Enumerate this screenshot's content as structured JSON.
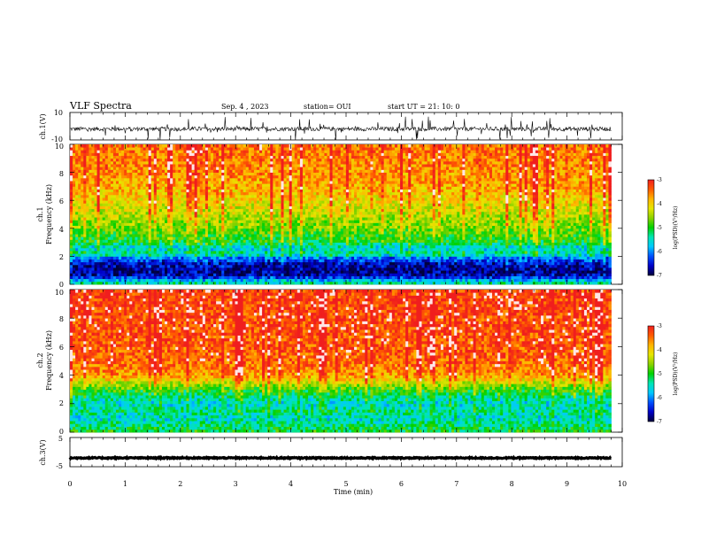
{
  "header": {
    "title": "VLF Spectra",
    "date": "Sep. 4 , 2023",
    "station": "station= OUI",
    "start_ut": "start UT =   21: 10: 0"
  },
  "colors": {
    "spectrum_scale": [
      "#00003c",
      "#0000c8",
      "#0050ff",
      "#00c8ff",
      "#00e6b4",
      "#00d200",
      "#8cd200",
      "#e6e600",
      "#ffb400",
      "#ff5a00",
      "#f01e1e",
      "#ffe6e6"
    ],
    "waveform": "#000000"
  },
  "chart_data": [
    {
      "type": "line",
      "panel": "ch1-waveform",
      "ylabel": "ch.1(V)",
      "yticklabels": [
        "10",
        "-10"
      ],
      "ylim": [
        -10,
        10
      ],
      "xlim": [
        0,
        10
      ],
      "data_extent_min": 9.8,
      "trace": {
        "baseline": -2,
        "noise_amplitude": 1.5,
        "spike_amplitude": 8
      }
    },
    {
      "type": "heatmap",
      "panel": "ch1-spectrogram",
      "ylabel_line1": "ch.1",
      "ylabel_line2": "Frequency  (kHz)",
      "yticklabels": [
        "0",
        "2",
        "4",
        "6",
        "8",
        "10"
      ],
      "ylim_khz": [
        0,
        10
      ],
      "xlim_min": [
        0,
        10
      ],
      "data_extent_min": 9.8,
      "profile_log_psd": [
        {
          "f": 0.0,
          "v": -5.2
        },
        {
          "f": 0.3,
          "v": -5.8
        },
        {
          "f": 0.6,
          "v": -6.6
        },
        {
          "f": 1.0,
          "v": -6.8
        },
        {
          "f": 1.5,
          "v": -6.6
        },
        {
          "f": 1.9,
          "v": -6.1
        },
        {
          "f": 2.2,
          "v": -5.3
        },
        {
          "f": 2.6,
          "v": -5.7
        },
        {
          "f": 3.0,
          "v": -5.1
        },
        {
          "f": 4.0,
          "v": -4.7
        },
        {
          "f": 5.0,
          "v": -4.4
        },
        {
          "f": 6.0,
          "v": -4.1
        },
        {
          "f": 7.0,
          "v": -3.8
        },
        {
          "f": 8.5,
          "v": -3.6
        },
        {
          "f": 10.0,
          "v": -3.5
        }
      ],
      "colorbar": {
        "label": "log(PSD)(V²/Hz)",
        "ticklabels": [
          "-3",
          "-4",
          "-5",
          "-6",
          "-7"
        ],
        "range": [
          -7,
          -3
        ]
      }
    },
    {
      "type": "heatmap",
      "panel": "ch2-spectrogram",
      "ylabel_line1": "ch.2",
      "ylabel_line2": "Frequency  (kHz)",
      "yticklabels": [
        "0",
        "2",
        "4",
        "6",
        "8",
        "10"
      ],
      "ylim_khz": [
        0,
        10
      ],
      "xlim_min": [
        0,
        10
      ],
      "data_extent_min": 9.8,
      "profile_log_psd": [
        {
          "f": 0.0,
          "v": -5.0
        },
        {
          "f": 0.5,
          "v": -5.3
        },
        {
          "f": 1.0,
          "v": -5.6
        },
        {
          "f": 1.5,
          "v": -5.3
        },
        {
          "f": 2.0,
          "v": -5.6
        },
        {
          "f": 2.5,
          "v": -5.3
        },
        {
          "f": 3.0,
          "v": -4.9
        },
        {
          "f": 3.5,
          "v": -4.3
        },
        {
          "f": 4.0,
          "v": -3.7
        },
        {
          "f": 5.0,
          "v": -3.4
        },
        {
          "f": 7.0,
          "v": -3.3
        },
        {
          "f": 10.0,
          "v": -3.2
        }
      ],
      "colorbar": {
        "label": "log(PSD)(V²/Hz)",
        "ticklabels": [
          "-3",
          "-4",
          "-5",
          "-6",
          "-7"
        ],
        "range": [
          -7,
          -3
        ]
      }
    },
    {
      "type": "line",
      "panel": "ch3-waveform",
      "ylabel": "ch.3(V)",
      "yticklabels": [
        "5",
        "-5"
      ],
      "ylim": [
        -5,
        5
      ],
      "xlim": [
        0,
        10
      ],
      "data_extent_min": 9.8,
      "trace": {
        "baseline": -2,
        "noise_amplitude": 0.2,
        "spike_amplitude": 0
      }
    }
  ],
  "xaxis": {
    "label": "Time  (min)",
    "ticklabels": [
      "0",
      "1",
      "2",
      "3",
      "4",
      "5",
      "6",
      "7",
      "8",
      "9",
      "10"
    ]
  }
}
